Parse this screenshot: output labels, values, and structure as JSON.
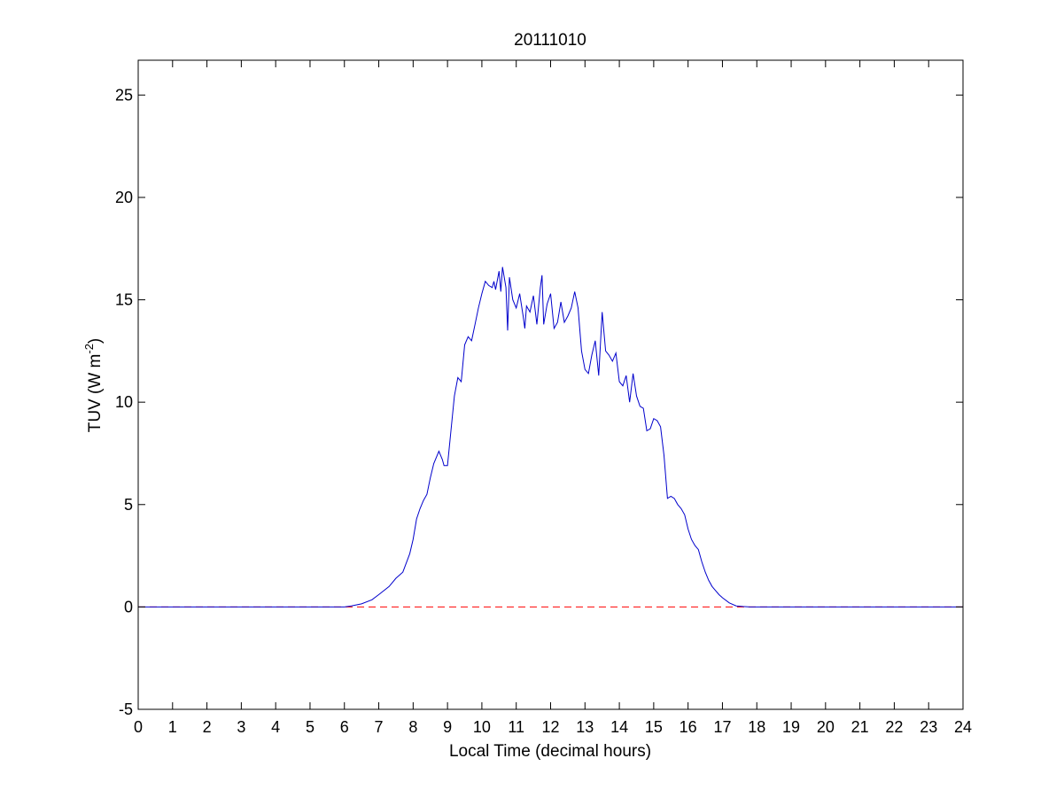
{
  "chart_data": {
    "type": "line",
    "title": "20111010",
    "xlabel": "Local Time (decimal hours)",
    "ylabel": {
      "base": "TUV (W m",
      "superscript": "-2",
      "close": ")"
    },
    "xlim": [
      0,
      24
    ],
    "ylim": [
      -5,
      26.7
    ],
    "xticks": [
      0,
      1,
      2,
      3,
      4,
      5,
      6,
      7,
      8,
      9,
      10,
      11,
      12,
      13,
      14,
      15,
      16,
      17,
      18,
      19,
      20,
      21,
      22,
      23,
      24
    ],
    "yticks": [
      -5,
      0,
      5,
      10,
      15,
      20,
      25
    ],
    "grid": false,
    "legend": "none",
    "series": [
      {
        "color": "#0000cc",
        "style": "solid",
        "x": [
          0,
          6.0,
          6.2,
          6.5,
          6.8,
          7.0,
          7.3,
          7.5,
          7.7,
          7.9,
          8.0,
          8.1,
          8.2,
          8.3,
          8.4,
          8.5,
          8.6,
          8.75,
          8.85,
          8.9,
          9.0,
          9.1,
          9.2,
          9.3,
          9.4,
          9.5,
          9.6,
          9.7,
          9.8,
          9.9,
          10.0,
          10.1,
          10.2,
          10.3,
          10.35,
          10.4,
          10.5,
          10.55,
          10.6,
          10.7,
          10.75,
          10.8,
          10.9,
          11.0,
          11.1,
          11.2,
          11.25,
          11.3,
          11.4,
          11.5,
          11.6,
          11.7,
          11.75,
          11.8,
          11.9,
          12.0,
          12.1,
          12.2,
          12.3,
          12.4,
          12.5,
          12.6,
          12.7,
          12.8,
          12.9,
          13.0,
          13.1,
          13.2,
          13.3,
          13.4,
          13.45,
          13.5,
          13.6,
          13.7,
          13.8,
          13.9,
          14.0,
          14.1,
          14.2,
          14.3,
          14.4,
          14.5,
          14.6,
          14.7,
          14.8,
          14.9,
          15.0,
          15.1,
          15.2,
          15.3,
          15.4,
          15.5,
          15.6,
          15.7,
          15.8,
          15.9,
          16.0,
          16.1,
          16.2,
          16.3,
          16.4,
          16.5,
          16.6,
          16.7,
          16.8,
          16.9,
          17.0,
          17.2,
          17.4,
          17.6,
          17.8,
          18.0,
          24
        ],
        "y": [
          0,
          0,
          0.05,
          0.15,
          0.35,
          0.6,
          1.0,
          1.4,
          1.7,
          2.6,
          3.3,
          4.3,
          4.8,
          5.2,
          5.5,
          6.3,
          7.0,
          7.6,
          7.2,
          6.9,
          6.9,
          8.6,
          10.3,
          11.2,
          11.0,
          12.8,
          13.2,
          13.0,
          13.8,
          14.6,
          15.3,
          15.9,
          15.7,
          15.6,
          15.9,
          15.5,
          16.4,
          15.4,
          16.6,
          15.6,
          13.5,
          16.1,
          15.0,
          14.6,
          15.3,
          14.2,
          13.6,
          14.7,
          14.4,
          15.2,
          13.8,
          15.6,
          16.2,
          13.8,
          14.8,
          15.3,
          13.6,
          13.9,
          14.9,
          13.9,
          14.2,
          14.6,
          15.4,
          14.6,
          12.5,
          11.6,
          11.4,
          12.3,
          13.0,
          11.3,
          12.8,
          14.4,
          12.5,
          12.3,
          12.0,
          12.4,
          11.0,
          10.8,
          11.3,
          10.0,
          11.4,
          10.3,
          9.8,
          9.7,
          8.6,
          8.7,
          9.2,
          9.1,
          8.8,
          7.4,
          5.3,
          5.4,
          5.3,
          5.0,
          4.8,
          4.5,
          3.8,
          3.3,
          3.0,
          2.8,
          2.2,
          1.7,
          1.3,
          1.0,
          0.8,
          0.6,
          0.45,
          0.2,
          0.05,
          0.02,
          0,
          0,
          0
        ]
      },
      {
        "color": "#ff0000",
        "style": "dashed",
        "x": [
          0,
          24
        ],
        "y": [
          0,
          0
        ]
      }
    ]
  }
}
